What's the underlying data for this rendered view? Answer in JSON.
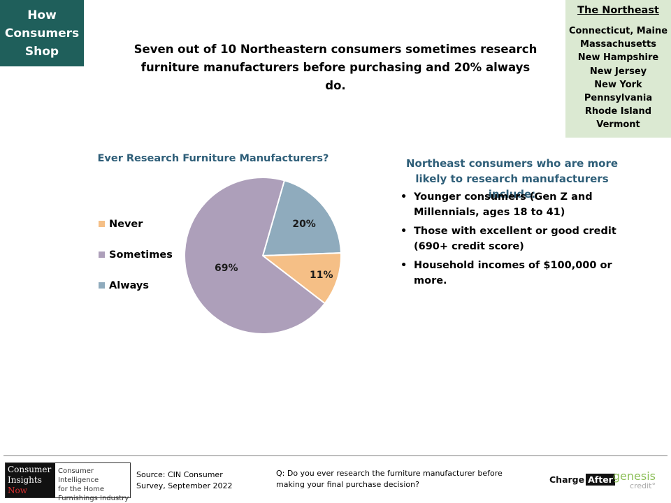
{
  "section_tag": [
    "How",
    "Consumers",
    "Shop"
  ],
  "region": {
    "title": "The Northeast",
    "states": [
      "Connecticut, Maine",
      "Massachusetts",
      "New Hampshire",
      "New Jersey",
      "New York",
      "Pennsylvania",
      "Rhode Island",
      "Vermont"
    ]
  },
  "headline": {
    "line1": "Seven out of 10 Northeastern consumers sometimes research",
    "line2": "furniture manufacturers before purchasing and 20% always do."
  },
  "chart_data": {
    "type": "pie",
    "title": "Ever Research Furniture Manufacturers?",
    "categories": [
      "Never",
      "Sometimes",
      "Always"
    ],
    "values": [
      11,
      69,
      20
    ],
    "labels": [
      "11%",
      "69%",
      "20%"
    ],
    "colors": [
      "#f5bf86",
      "#ad9fba",
      "#8fabbd"
    ],
    "legend_position": "left"
  },
  "insights": {
    "title_line1": "Northeast consumers who are more",
    "title_line2": "likely to research manufacturers include:",
    "bullets": [
      {
        "line1": "Younger consumers (Gen Z and",
        "line2": "Millennials, ages 18 to 41)"
      },
      {
        "line1": "Those with excellent or good credit",
        "line2": "(690+ credit score)"
      },
      {
        "line1": "Household incomes of $100,000 or",
        "line2": "more."
      }
    ]
  },
  "footer": {
    "logo_brand": [
      "Consumer",
      "Insights",
      "Now"
    ],
    "logo_tagline": [
      "Consumer Intelligence",
      "for the Home",
      "Furnishings Industry"
    ],
    "source_line1": "Source: CIN Consumer",
    "source_line2": "Survey, September  2022",
    "question_line1": "Q: Do you ever  research the furniture manufacturer before",
    "question_line2": "making your final purchase decision?",
    "sponsor1_text": "Charge",
    "sponsor1_box": "After",
    "sponsor2_name": "genesis",
    "sponsor2_sub": "credit°"
  }
}
